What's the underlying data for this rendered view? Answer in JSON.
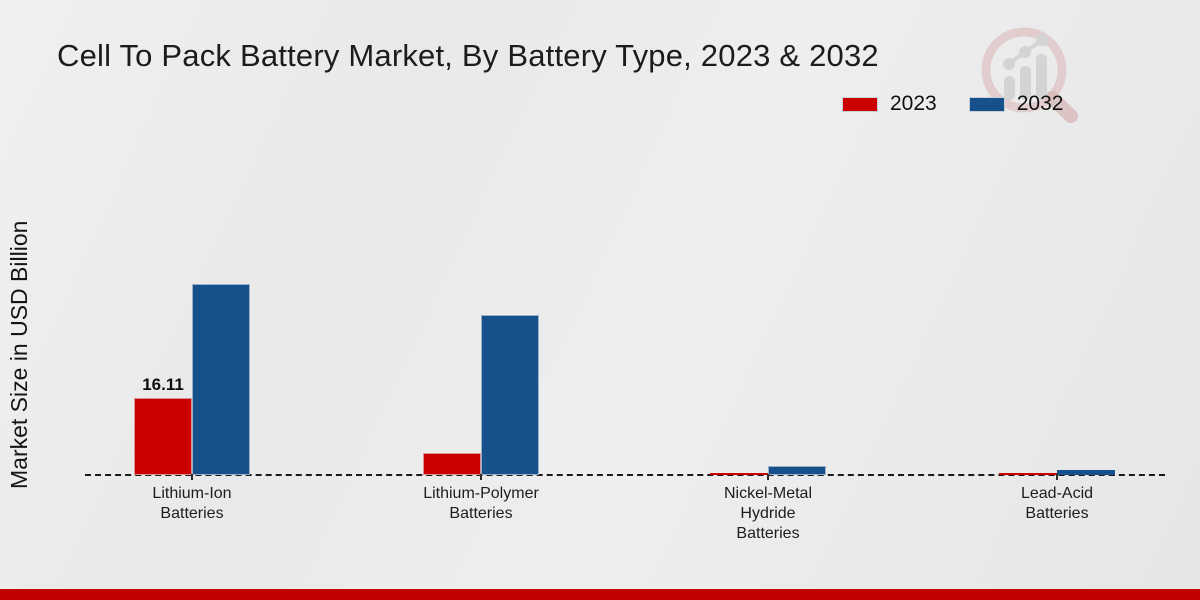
{
  "header": {
    "title": "Cell To Pack Battery Market, By Battery Type, 2023 & 2032"
  },
  "y_axis": {
    "label": "Market Size in USD Billion"
  },
  "watermark": {
    "icon": "magnifier-bar-chart-logo",
    "ring_color": "#ddc2c2",
    "bar_color": "#d3d3d3"
  },
  "footer": {
    "accent_color": "#c00101"
  },
  "chart_data": {
    "type": "bar",
    "title": "Cell To Pack Battery Market, By Battery Type, 2023 & 2032",
    "xlabel": "",
    "ylabel": "Market Size in USD Billion",
    "categories": [
      "Lithium-Ion Batteries",
      "Lithium-Polymer Batteries",
      "Nickel-Metal Hydride Batteries",
      "Lead-Acid Batteries"
    ],
    "categories_display": [
      "Lithium-Ion\nBatteries",
      "Lithium-Polymer\nBatteries",
      "Nickel-Metal\nHydride\nBatteries",
      "Lead-Acid\nBatteries"
    ],
    "series": [
      {
        "name": "2023",
        "color": "#cb0101",
        "values": [
          16.11,
          4.7,
          0.35,
          0.25
        ],
        "data_labels": [
          "16.11",
          null,
          null,
          null
        ]
      },
      {
        "name": "2032",
        "color": "#17518c",
        "values": [
          40.0,
          33.4,
          1.8,
          1.15
        ],
        "data_labels": [
          null,
          null,
          null,
          null
        ]
      }
    ],
    "ylim": [
      0,
      45
    ],
    "grid": false,
    "baseline_style": "dashed",
    "legend_position": "top-right",
    "data_label_shown": "16.11"
  }
}
